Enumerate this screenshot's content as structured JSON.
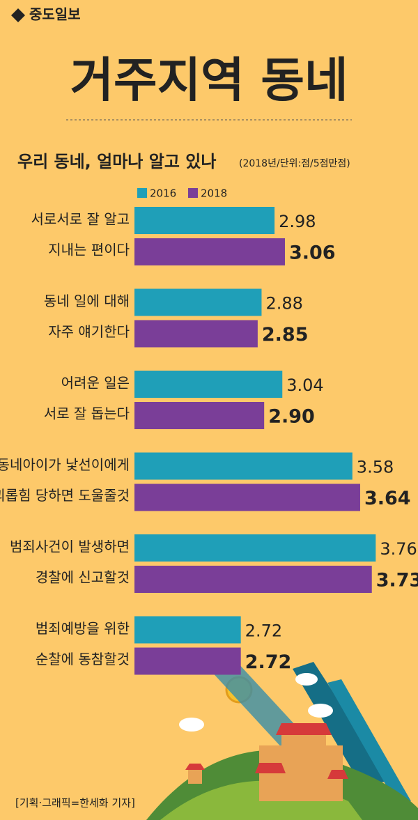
{
  "logo": "중도일보",
  "chart_data": {
    "type": "bar",
    "orientation": "horizontal",
    "title": "거주지역 동네",
    "subtitle": "우리 동네, 얼마나 알고 있나",
    "note": "(2018년/단위:점/5점만점)",
    "categories": [
      [
        "서로서로 잘 알고",
        "지내는 편이다"
      ],
      [
        "동네 일에 대해",
        "자주 얘기한다"
      ],
      [
        "어려운 일은",
        "서로 잘 돕는다"
      ],
      [
        "동네아이가 낯선이에게",
        "괴롭힘 당하면 도울줄것"
      ],
      [
        "범죄사건이 발생하면",
        "경찰에 신고할것"
      ],
      [
        "범죄예방을 위한",
        "순찰에 동참할것"
      ]
    ],
    "series": [
      {
        "name": "2016",
        "color": "#1f9fb8",
        "values": [
          2.98,
          2.88,
          3.04,
          3.58,
          3.76,
          2.72
        ],
        "value_labels": [
          "2.98",
          "2.88",
          "3.04",
          "3.58",
          "3.76",
          "2.72"
        ]
      },
      {
        "name": "2018",
        "color": "#7a3e98",
        "values": [
          3.06,
          2.85,
          2.9,
          3.64,
          3.73,
          2.72
        ],
        "value_labels": [
          "3.06",
          "2.85",
          "2.90",
          "3.64",
          "3.73",
          "2.72"
        ]
      }
    ],
    "xlim": [
      1.9,
      4.0
    ]
  },
  "credit": "[기획·그래픽=한세화 기자]"
}
